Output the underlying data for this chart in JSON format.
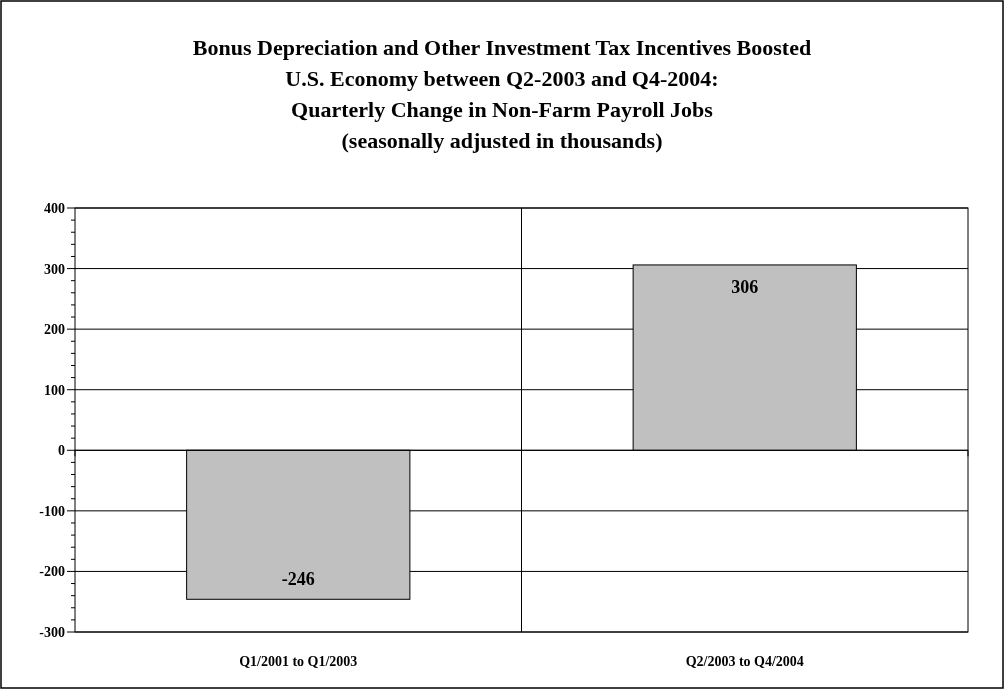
{
  "chart_data": {
    "type": "bar",
    "title": "Bonus Depreciation and Other Investment Tax Incentives Boosted\nU.S. Economy between Q2-2003 and Q4-2004:\nQuarterly Change in Non-Farm Payroll Jobs",
    "subtitle": "(seasonally adjusted in thousands)",
    "categories": [
      "Q1/2001 to Q1/2003",
      "Q2/2003 to Q4/2004"
    ],
    "values": [
      -246,
      306
    ],
    "color": "#c0c0c0",
    "data_labels": true,
    "grid": true,
    "ylim": [
      -300,
      400
    ],
    "yticks": [
      -300,
      {
        "value": -280,
        "label": null
      },
      {
        "value": -260,
        "label": null
      },
      {
        "value": -240,
        "label": null
      },
      {
        "value": -220,
        "label": null
      },
      -200,
      {
        "value": -180,
        "label": null
      },
      {
        "value": -160,
        "label": null
      },
      {
        "value": -140,
        "label": null
      },
      {
        "value": -120,
        "label": null
      },
      -100,
      {
        "value": -80,
        "label": null
      },
      {
        "value": -60,
        "label": null
      },
      {
        "value": -40,
        "label": null
      },
      {
        "value": -20,
        "label": null
      },
      0,
      {
        "value": 20,
        "label": null
      },
      {
        "value": 40,
        "label": null
      },
      {
        "value": 60,
        "label": null
      },
      {
        "value": 80,
        "label": null
      },
      100,
      {
        "value": 120,
        "label": null
      },
      {
        "value": 140,
        "label": null
      },
      {
        "value": 160,
        "label": null
      },
      {
        "value": 180,
        "label": null
      },
      200,
      {
        "value": 220,
        "label": null
      },
      {
        "value": 240,
        "label": null
      },
      {
        "value": 260,
        "label": null
      },
      {
        "value": 280,
        "label": null
      },
      300,
      {
        "value": 320,
        "label": null
      },
      {
        "value": 340,
        "label": null
      },
      {
        "value": 360,
        "label": null
      },
      {
        "value": 380,
        "label": null
      },
      400
    ]
  }
}
